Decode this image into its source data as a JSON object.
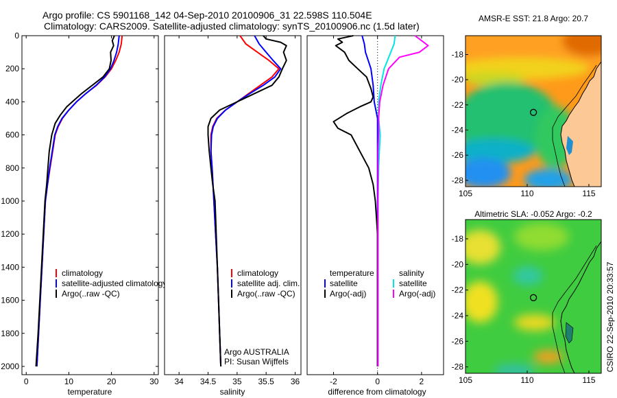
{
  "header": {
    "line1": "Argo profile: CS 5901168_142 04-Sep-2010 20100906_31 22.598S 110.504E",
    "line2": "Climatology: CARS2009. Satellite-adjusted climatology: synTS_20100906.nc (1.5d later)"
  },
  "side_label": "CSIRO 22-Sep-2010 20:33:57",
  "credit": {
    "line1": "Argo AUSTRALIA",
    "line2": "PI: Susan Wijffels"
  },
  "colors": {
    "climatology": "#ff0000",
    "satellite": "#0000ff",
    "argo": "#000000",
    "satellite_diff": "#00e5e5",
    "argo_diff": "#ff00ff"
  },
  "chart_data": [
    {
      "type": "line",
      "xlabel": "temperature",
      "ylabel": "",
      "xlim": [
        -1,
        31
      ],
      "ylim": [
        2050,
        0
      ],
      "y_reversed": true,
      "xticks": [
        0,
        10,
        20,
        30
      ],
      "yticks": [
        0,
        200,
        400,
        600,
        800,
        1000,
        1200,
        1400,
        1600,
        1800,
        2000
      ],
      "legend": {
        "position": "bottom-right",
        "entries": [
          "climatology",
          "satellite-adjusted climatology",
          "Argo(..raw -QC)"
        ]
      },
      "series": [
        {
          "name": "climatology",
          "color": "#ff0000",
          "points": [
            [
              22.5,
              0
            ],
            [
              22.3,
              50
            ],
            [
              21.8,
              100
            ],
            [
              21.0,
              150
            ],
            [
              20.0,
              200
            ],
            [
              18.5,
              250
            ],
            [
              16.5,
              300
            ],
            [
              14.0,
              350
            ],
            [
              11.8,
              400
            ],
            [
              10.0,
              450
            ],
            [
              8.5,
              500
            ],
            [
              7.5,
              550
            ],
            [
              6.8,
              600
            ],
            [
              6.2,
              700
            ],
            [
              5.6,
              800
            ],
            [
              5.0,
              900
            ],
            [
              4.5,
              1000
            ],
            [
              4.1,
              1200
            ],
            [
              3.7,
              1400
            ],
            [
              3.3,
              1600
            ],
            [
              2.9,
              1800
            ],
            [
              2.5,
              2000
            ]
          ]
        },
        {
          "name": "satellite-adjusted climatology",
          "color": "#0000ff",
          "points": [
            [
              21.8,
              0
            ],
            [
              21.6,
              50
            ],
            [
              21.2,
              100
            ],
            [
              20.6,
              150
            ],
            [
              19.8,
              200
            ],
            [
              18.4,
              250
            ],
            [
              16.4,
              300
            ],
            [
              14.0,
              350
            ],
            [
              11.8,
              400
            ],
            [
              10.0,
              450
            ],
            [
              8.4,
              500
            ],
            [
              7.4,
              550
            ],
            [
              6.7,
              600
            ],
            [
              6.1,
              700
            ],
            [
              5.5,
              800
            ],
            [
              5.0,
              900
            ],
            [
              4.5,
              1000
            ],
            [
              4.1,
              1200
            ],
            [
              3.7,
              1400
            ],
            [
              3.3,
              1600
            ],
            [
              2.9,
              1800
            ],
            [
              2.5,
              2000
            ]
          ]
        },
        {
          "name": "Argo(..raw -QC)",
          "color": "#000000",
          "points": [
            [
              20.7,
              0
            ],
            [
              20.2,
              30
            ],
            [
              20.5,
              60
            ],
            [
              19.8,
              100
            ],
            [
              19.9,
              150
            ],
            [
              19.5,
              200
            ],
            [
              18.0,
              250
            ],
            [
              15.5,
              300
            ],
            [
              13.0,
              350
            ],
            [
              10.8,
              400
            ],
            [
              9.5,
              430
            ],
            [
              8.0,
              480
            ],
            [
              6.8,
              530
            ],
            [
              6.0,
              600
            ],
            [
              5.4,
              700
            ],
            [
              5.1,
              800
            ],
            [
              4.8,
              900
            ],
            [
              4.4,
              1000
            ],
            [
              4.0,
              1200
            ],
            [
              3.6,
              1400
            ],
            [
              3.2,
              1600
            ],
            [
              2.8,
              1800
            ],
            [
              2.3,
              2000
            ]
          ]
        }
      ]
    },
    {
      "type": "line",
      "xlabel": "salinity",
      "ylabel": "",
      "xlim": [
        33.75,
        36.1
      ],
      "ylim": [
        2050,
        0
      ],
      "y_reversed": true,
      "xticks": [
        34,
        34.5,
        35,
        35.5,
        36
      ],
      "yticks": [],
      "legend": {
        "position": "bottom-right",
        "entries": [
          "climatology",
          "satellite adj. clim.",
          "Argo(..raw -QC)"
        ]
      },
      "series": [
        {
          "name": "climatology",
          "color": "#ff0000",
          "points": [
            [
              35.05,
              0
            ],
            [
              35.15,
              50
            ],
            [
              35.35,
              100
            ],
            [
              35.55,
              150
            ],
            [
              35.72,
              200
            ],
            [
              35.6,
              250
            ],
            [
              35.4,
              300
            ],
            [
              35.2,
              350
            ],
            [
              35.0,
              400
            ],
            [
              34.8,
              450
            ],
            [
              34.65,
              500
            ],
            [
              34.58,
              550
            ],
            [
              34.55,
              600
            ],
            [
              34.55,
              700
            ],
            [
              34.57,
              800
            ],
            [
              34.6,
              1000
            ],
            [
              34.63,
              1200
            ],
            [
              34.66,
              1400
            ],
            [
              34.68,
              1600
            ],
            [
              34.7,
              1800
            ],
            [
              34.72,
              2000
            ]
          ]
        },
        {
          "name": "satellite adj. clim.",
          "color": "#0000ff",
          "points": [
            [
              35.3,
              0
            ],
            [
              35.38,
              50
            ],
            [
              35.5,
              100
            ],
            [
              35.62,
              150
            ],
            [
              35.75,
              200
            ],
            [
              35.65,
              250
            ],
            [
              35.45,
              300
            ],
            [
              35.22,
              350
            ],
            [
              35.0,
              400
            ],
            [
              34.8,
              450
            ],
            [
              34.66,
              500
            ],
            [
              34.59,
              550
            ],
            [
              34.56,
              600
            ],
            [
              34.55,
              700
            ],
            [
              34.57,
              800
            ],
            [
              34.6,
              1000
            ],
            [
              34.63,
              1200
            ],
            [
              34.66,
              1400
            ],
            [
              34.68,
              1600
            ],
            [
              34.7,
              1800
            ],
            [
              34.72,
              2000
            ]
          ]
        },
        {
          "name": "Argo(..raw -QC)",
          "color": "#000000",
          "points": [
            [
              35.45,
              0
            ],
            [
              35.5,
              20
            ],
            [
              35.75,
              40
            ],
            [
              35.85,
              60
            ],
            [
              35.8,
              100
            ],
            [
              35.85,
              150
            ],
            [
              35.78,
              200
            ],
            [
              35.72,
              250
            ],
            [
              35.6,
              300
            ],
            [
              35.3,
              350
            ],
            [
              35.0,
              400
            ],
            [
              34.7,
              450
            ],
            [
              34.55,
              500
            ],
            [
              34.5,
              550
            ],
            [
              34.5,
              600
            ],
            [
              34.52,
              700
            ],
            [
              34.55,
              800
            ],
            [
              34.58,
              900
            ],
            [
              34.62,
              1000
            ],
            [
              34.64,
              1200
            ],
            [
              34.66,
              1400
            ],
            [
              34.68,
              1600
            ],
            [
              34.7,
              1800
            ],
            [
              34.72,
              2000
            ]
          ]
        }
      ]
    },
    {
      "type": "line",
      "xlabel": "difference from climatology",
      "ylabel": "",
      "xlim": [
        -3.2,
        3.0
      ],
      "ylim": [
        2050,
        0
      ],
      "y_reversed": true,
      "xticks": [
        -2,
        0,
        2
      ],
      "yticks": [],
      "zero_line": true,
      "legend": {
        "position": "bottom",
        "temperature_heading": "temperature",
        "salinity_heading": "salinity",
        "entries": [
          "satellite",
          "Argo(-adj)",
          "satellite",
          "Argo(-adj)"
        ]
      },
      "series": [
        {
          "name": "temperature satellite",
          "color": "#0000ff",
          "points": [
            [
              -0.7,
              0
            ],
            [
              -0.6,
              50
            ],
            [
              -0.55,
              100
            ],
            [
              -0.3,
              200
            ],
            [
              -0.2,
              300
            ],
            [
              -0.15,
              400
            ],
            [
              0,
              500
            ],
            [
              0,
              600
            ],
            [
              0,
              800
            ],
            [
              0,
              1000
            ],
            [
              0,
              1200
            ],
            [
              0,
              1500
            ],
            [
              0,
              1800
            ],
            [
              0,
              2000
            ]
          ]
        },
        {
          "name": "temperature Argo(-adj)",
          "color": "#000000",
          "points": [
            [
              -1.1,
              0
            ],
            [
              -1.8,
              20
            ],
            [
              -1.6,
              40
            ],
            [
              -1.9,
              60
            ],
            [
              -1.5,
              100
            ],
            [
              -1.3,
              150
            ],
            [
              -0.9,
              200
            ],
            [
              -0.5,
              250
            ],
            [
              -0.3,
              320
            ],
            [
              -0.2,
              370
            ],
            [
              -0.3,
              400
            ],
            [
              -0.8,
              430
            ],
            [
              -1.4,
              470
            ],
            [
              -2.0,
              520
            ],
            [
              -1.8,
              560
            ],
            [
              -1.2,
              600
            ],
            [
              -0.8,
              700
            ],
            [
              -0.4,
              800
            ],
            [
              -0.2,
              900
            ],
            [
              -0.1,
              1000
            ],
            [
              0,
              1200
            ],
            [
              0,
              1500
            ],
            [
              0,
              2000
            ]
          ]
        },
        {
          "name": "salinity satellite",
          "color": "#00e5e5",
          "points": [
            [
              0.8,
              0
            ],
            [
              0.75,
              50
            ],
            [
              0.6,
              100
            ],
            [
              0.45,
              150
            ],
            [
              0.3,
              200
            ],
            [
              0.15,
              300
            ],
            [
              0.05,
              400
            ],
            [
              0.05,
              500
            ],
            [
              0.12,
              600
            ],
            [
              0.08,
              700
            ],
            [
              0.05,
              800
            ],
            [
              0.02,
              1000
            ],
            [
              0.02,
              1200
            ],
            [
              0.02,
              1500
            ],
            [
              0.02,
              1800
            ],
            [
              0.02,
              2000
            ]
          ]
        },
        {
          "name": "salinity Argo(-adj)",
          "color": "#ff00ff",
          "points": [
            [
              1.7,
              0
            ],
            [
              2.0,
              30
            ],
            [
              2.3,
              60
            ],
            [
              1.9,
              100
            ],
            [
              1.0,
              130
            ],
            [
              0.5,
              200
            ],
            [
              0.25,
              300
            ],
            [
              0.1,
              400
            ],
            [
              0.05,
              500
            ],
            [
              0.05,
              600
            ],
            [
              0.02,
              700
            ],
            [
              0.02,
              800
            ],
            [
              0.02,
              1000
            ],
            [
              0.02,
              1200
            ],
            [
              0.02,
              1500
            ],
            [
              0.02,
              2000
            ]
          ]
        }
      ]
    },
    {
      "type": "heatmap",
      "title": "AMSR-E SST: 21.8 Argo: 20.7",
      "xlim": [
        105,
        116
      ],
      "ylim": [
        -28.5,
        -16.5
      ],
      "xticks": [
        105,
        110,
        115
      ],
      "yticks": [
        -18,
        -20,
        -22,
        -24,
        -26,
        -28
      ],
      "marker": {
        "lon": 110.504,
        "lat": -22.598
      }
    },
    {
      "type": "heatmap",
      "title": "Altimetric SLA: -0.052 Argo: -0.2",
      "xlim": [
        105,
        116
      ],
      "ylim": [
        -28.5,
        -16.5
      ],
      "xticks": [
        105,
        110,
        115
      ],
      "yticks": [
        -18,
        -20,
        -22,
        -24,
        -26,
        -28
      ],
      "marker": {
        "lon": 110.504,
        "lat": -22.598
      }
    }
  ]
}
